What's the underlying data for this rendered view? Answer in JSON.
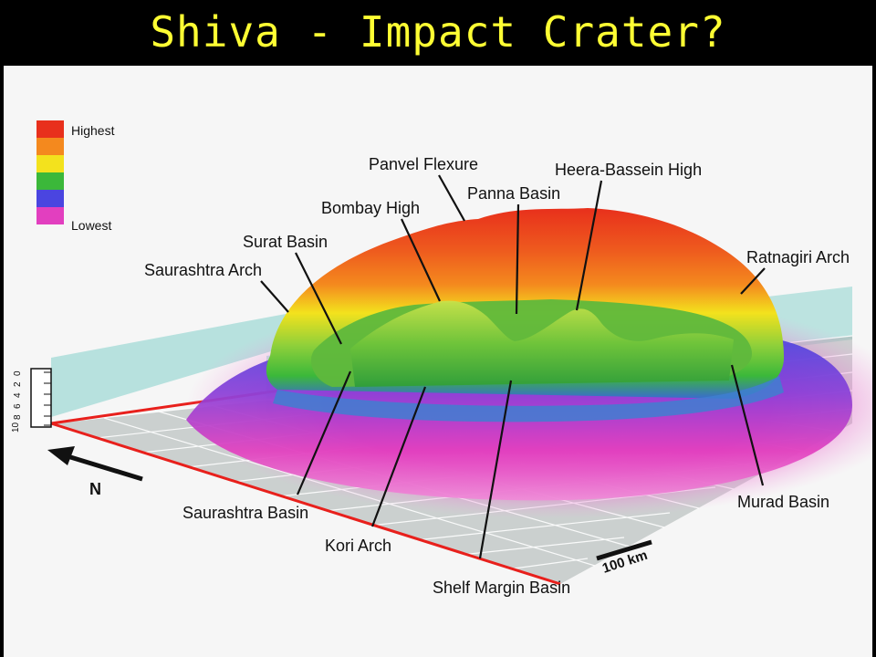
{
  "slide": {
    "title": "Shiva - Impact Crater?"
  },
  "legend": {
    "high_label": "Highest",
    "low_label": "Lowest",
    "colors": [
      "#e8301c",
      "#f4891e",
      "#f3e21d",
      "#3bb83a",
      "#4a45e0",
      "#e23fbf"
    ]
  },
  "depth_scale": {
    "ticks": [
      "0",
      "2",
      "4",
      "6",
      "8",
      "10"
    ]
  },
  "north_arrow": {
    "label": "N"
  },
  "scale_bar": {
    "label": "100 km"
  },
  "features": {
    "panvel_flexure": "Panvel Flexure",
    "heera_bassein_high": "Heera-Bassein High",
    "panna_basin": "Panna Basin",
    "bombay_high": "Bombay High",
    "surat_basin": "Surat Basin",
    "saurashtra_arch": "Saurashtra Arch",
    "ratnagiri_arch": "Ratnagiri Arch",
    "saurashtra_basin": "Saurashtra Basin",
    "kori_arch": "Kori Arch",
    "shelf_margin_basin": "Shelf Margin Basin",
    "murad_basin": "Murad Basin"
  }
}
